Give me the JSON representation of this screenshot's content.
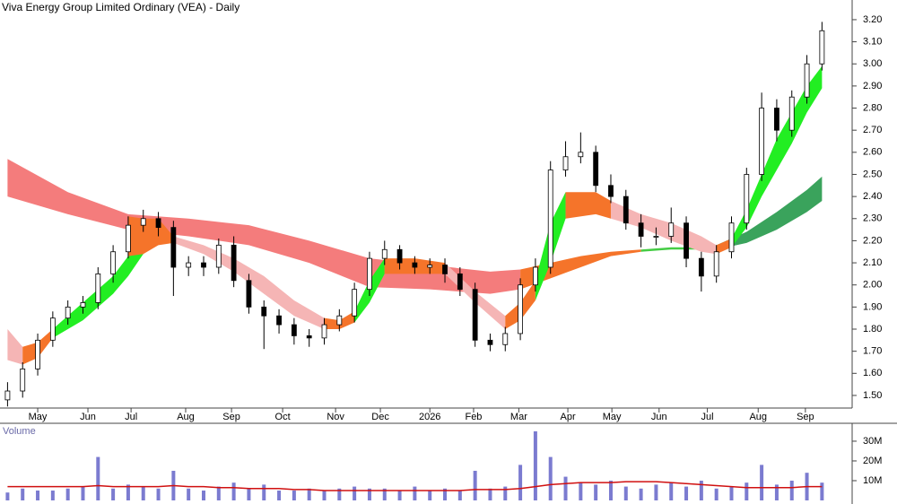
{
  "chart_data": [
    {
      "type": "candlestick",
      "title": "Viva Energy Group Limited Ordinary (VEA) - Daily",
      "xlim": [
        -0.5,
        56
      ],
      "xticks": [
        {
          "value": 2,
          "label": "May"
        },
        {
          "value": 5.33,
          "label": "Jun"
        },
        {
          "value": 8.19,
          "label": "Jul"
        },
        {
          "value": 11.81,
          "label": "Aug"
        },
        {
          "value": 14.85,
          "label": "Sep"
        },
        {
          "value": 18.24,
          "label": "Oct"
        },
        {
          "value": 21.75,
          "label": "Nov"
        },
        {
          "value": 24.72,
          "label": "Dec"
        },
        {
          "value": 28,
          "label": "2026"
        },
        {
          "value": 30.9,
          "label": "Feb"
        },
        {
          "value": 33.9,
          "label": "Mar"
        },
        {
          "value": 37.15,
          "label": "Apr"
        },
        {
          "value": 40.07,
          "label": "May"
        },
        {
          "value": 43.2,
          "label": "Jun"
        },
        {
          "value": 46.4,
          "label": "Jul"
        },
        {
          "value": 49.77,
          "label": "Aug"
        },
        {
          "value": 52.9,
          "label": "Sep"
        }
      ],
      "ylim": [
        1.443,
        3.289
      ],
      "yticks": [
        {
          "value": 1.5,
          "label": "1.50"
        },
        {
          "value": 1.6,
          "label": "1.60"
        },
        {
          "value": 1.7,
          "label": "1.70"
        },
        {
          "value": 1.8,
          "label": "1.80"
        },
        {
          "value": 1.9,
          "label": "1.90"
        },
        {
          "value": 2.0,
          "label": "2.00"
        },
        {
          "value": 2.1,
          "label": "2.10"
        },
        {
          "value": 2.2,
          "label": "2.20"
        },
        {
          "value": 2.3,
          "label": "2.30"
        },
        {
          "value": 2.4,
          "label": "2.40"
        },
        {
          "value": 2.5,
          "label": "2.50"
        },
        {
          "value": 2.6,
          "label": "2.60"
        },
        {
          "value": 2.7,
          "label": "2.70"
        },
        {
          "value": 2.8,
          "label": "2.80"
        },
        {
          "value": 2.9,
          "label": "2.90"
        },
        {
          "value": 3.0,
          "label": "3.00"
        },
        {
          "value": 3.1,
          "label": "3.10"
        },
        {
          "value": 3.2,
          "label": "3.20"
        }
      ],
      "up_color": "#ffffff",
      "down_color": "#000000",
      "open": [
        1.48,
        1.52,
        1.62,
        1.75,
        1.85,
        1.9,
        1.92,
        2.05,
        2.15,
        2.27,
        2.3,
        2.26,
        2.08,
        2.1,
        2.08,
        2.18,
        2.02,
        1.9,
        1.86,
        1.82,
        1.77,
        1.76,
        1.82,
        1.86,
        1.98,
        2.12,
        2.16,
        2.1,
        2.08,
        2.09,
        2.05,
        1.98,
        1.75,
        1.73,
        1.78,
        2.0,
        2.08,
        2.52,
        2.58,
        2.6,
        2.45,
        2.4,
        2.28,
        2.22,
        2.22,
        2.28,
        2.12,
        2.04,
        2.15,
        2.28,
        2.5,
        2.8,
        2.7,
        2.85,
        3.0
      ],
      "high": [
        1.56,
        1.65,
        1.78,
        1.88,
        1.93,
        1.95,
        2.08,
        2.18,
        2.31,
        2.34,
        2.33,
        2.29,
        2.13,
        2.13,
        2.21,
        2.22,
        2.05,
        1.93,
        1.89,
        1.85,
        1.8,
        1.85,
        1.89,
        2.01,
        2.15,
        2.2,
        2.18,
        2.13,
        2.12,
        2.12,
        2.08,
        2.01,
        1.78,
        1.81,
        2.03,
        2.12,
        2.56,
        2.65,
        2.69,
        2.63,
        2.5,
        2.43,
        2.32,
        2.26,
        2.35,
        2.31,
        2.15,
        2.18,
        2.31,
        2.53,
        2.87,
        2.84,
        2.88,
        3.04,
        3.19
      ],
      "low": [
        1.45,
        1.49,
        1.59,
        1.72,
        1.82,
        1.87,
        1.89,
        2.01,
        2.12,
        2.24,
        2.22,
        1.95,
        2.04,
        2.04,
        2.05,
        1.99,
        1.87,
        1.71,
        1.78,
        1.73,
        1.72,
        1.73,
        1.79,
        1.83,
        1.95,
        2.09,
        2.07,
        2.05,
        2.05,
        2.01,
        1.95,
        1.72,
        1.7,
        1.7,
        1.75,
        1.97,
        2.05,
        2.49,
        2.55,
        2.42,
        2.37,
        2.25,
        2.17,
        2.18,
        2.19,
        2.08,
        1.97,
        2.01,
        2.12,
        2.25,
        2.47,
        2.65,
        2.67,
        2.82,
        2.97
      ],
      "close": [
        1.52,
        1.62,
        1.75,
        1.85,
        1.9,
        1.92,
        2.05,
        2.15,
        2.27,
        2.3,
        2.26,
        2.08,
        2.1,
        2.08,
        2.18,
        2.02,
        1.9,
        1.86,
        1.82,
        1.77,
        1.76,
        1.82,
        1.86,
        1.98,
        2.12,
        2.16,
        2.1,
        2.08,
        2.09,
        2.05,
        1.98,
        1.75,
        1.73,
        1.78,
        2.0,
        2.08,
        2.52,
        2.58,
        2.6,
        2.45,
        2.4,
        2.28,
        2.22,
        2.22,
        2.28,
        2.12,
        2.04,
        2.15,
        2.28,
        2.5,
        2.8,
        2.7,
        2.85,
        3.0,
        3.15
      ],
      "ribbons": [
        {
          "color": "#f47c7c",
          "x": [
            0,
            4,
            8,
            12,
            16,
            20,
            24,
            28,
            32,
            34
          ],
          "upper": [
            2.57,
            2.42,
            2.32,
            2.3,
            2.27,
            2.2,
            2.12,
            2.09,
            2.06,
            2.07
          ],
          "lower": [
            2.4,
            2.32,
            2.25,
            2.22,
            2.18,
            2.1,
            1.99,
            1.98,
            1.96,
            1.98
          ]
        },
        {
          "color": "#f5742a",
          "x": [
            34,
            36,
            38,
            40,
            42
          ],
          "upper": [
            2.07,
            2.1,
            2.13,
            2.15,
            2.16
          ],
          "lower": [
            1.98,
            2.03,
            2.08,
            2.13,
            2.15
          ]
        },
        {
          "color": "#44cc44",
          "x": [
            42,
            44,
            46,
            47
          ],
          "upper": [
            2.16,
            2.17,
            2.17,
            2.18
          ],
          "lower": [
            2.15,
            2.16,
            2.16,
            2.16
          ]
        },
        {
          "color": "#3aa35c",
          "x": [
            47,
            49,
            51,
            53,
            54
          ],
          "upper": [
            2.18,
            2.24,
            2.33,
            2.43,
            2.49
          ],
          "lower": [
            2.16,
            2.19,
            2.25,
            2.33,
            2.38
          ]
        },
        {
          "color": "#f5b5b5",
          "x": [
            0,
            1
          ],
          "upper": [
            1.8,
            1.72
          ],
          "lower": [
            1.66,
            1.64
          ]
        },
        {
          "color": "#f5742a",
          "x": [
            1,
            2,
            3
          ],
          "upper": [
            1.72,
            1.74,
            1.8
          ],
          "lower": [
            1.64,
            1.67,
            1.76
          ]
        },
        {
          "color": "#22ee22",
          "x": [
            3,
            5,
            7,
            8,
            9
          ],
          "upper": [
            1.8,
            1.92,
            2.04,
            2.13,
            2.2
          ],
          "lower": [
            1.76,
            1.84,
            1.96,
            2.04,
            2.14
          ]
        },
        {
          "color": "#f5742a",
          "x": [
            8,
            9,
            10,
            11
          ],
          "upper": [
            2.31,
            2.3,
            2.3,
            2.22
          ],
          "lower": [
            2.13,
            2.14,
            2.18,
            2.19
          ]
        },
        {
          "color": "#f5b5b5",
          "x": [
            11,
            13,
            15,
            17,
            19,
            21
          ],
          "upper": [
            2.22,
            2.18,
            2.12,
            2.04,
            1.93,
            1.85
          ],
          "lower": [
            2.19,
            2.14,
            2.06,
            1.96,
            1.86,
            1.8
          ]
        },
        {
          "color": "#f5742a",
          "x": [
            21,
            22,
            23
          ],
          "upper": [
            1.85,
            1.84,
            1.88
          ],
          "lower": [
            1.8,
            1.8,
            1.83
          ]
        },
        {
          "color": "#22ee22",
          "x": [
            23,
            24,
            25
          ],
          "upper": [
            1.88,
            2.02,
            2.12
          ],
          "lower": [
            1.83,
            1.92,
            2.05
          ]
        },
        {
          "color": "#f5742a",
          "x": [
            25,
            27,
            29
          ],
          "upper": [
            2.12,
            2.12,
            2.1
          ],
          "lower": [
            2.05,
            2.05,
            2.05
          ]
        },
        {
          "color": "#f5b5b5",
          "x": [
            29,
            31,
            33
          ],
          "upper": [
            2.1,
            1.97,
            1.86
          ],
          "lower": [
            2.05,
            1.92,
            1.8
          ]
        },
        {
          "color": "#f5742a",
          "x": [
            33,
            34,
            35
          ],
          "upper": [
            1.86,
            1.92,
            2.02
          ],
          "lower": [
            1.8,
            1.84,
            1.93
          ]
        },
        {
          "color": "#22ee22",
          "x": [
            35,
            36,
            37
          ],
          "upper": [
            2.02,
            2.28,
            2.42
          ],
          "lower": [
            1.93,
            2.1,
            2.3
          ]
        },
        {
          "color": "#f5742a",
          "x": [
            37,
            39,
            40
          ],
          "upper": [
            2.42,
            2.42,
            2.38
          ],
          "lower": [
            2.3,
            2.32,
            2.3
          ]
        },
        {
          "color": "#f5b5b5",
          "x": [
            40,
            42,
            44,
            46,
            47
          ],
          "upper": [
            2.38,
            2.32,
            2.28,
            2.22,
            2.18
          ],
          "lower": [
            2.3,
            2.26,
            2.2,
            2.15,
            2.14
          ]
        },
        {
          "color": "#f5742a",
          "x": [
            47,
            48
          ],
          "upper": [
            2.18,
            2.21
          ],
          "lower": [
            2.14,
            2.17
          ]
        },
        {
          "color": "#22ee22",
          "x": [
            48,
            49,
            50,
            51,
            52,
            53,
            54
          ],
          "upper": [
            2.21,
            2.34,
            2.5,
            2.66,
            2.78,
            2.9,
            2.99
          ],
          "lower": [
            2.17,
            2.26,
            2.4,
            2.52,
            2.64,
            2.78,
            2.89
          ]
        }
      ]
    },
    {
      "type": "bar",
      "title": "Volume",
      "xlim": [
        -0.5,
        56
      ],
      "ylim": [
        0,
        37.7
      ],
      "yticks": [
        {
          "value": 10,
          "label": "10M"
        },
        {
          "value": 20,
          "label": "20M"
        },
        {
          "value": 30,
          "label": "30M"
        }
      ],
      "color": "#7b7bd0",
      "values": [
        4,
        6,
        5,
        5,
        6,
        7,
        22,
        6,
        8,
        7,
        6,
        15,
        6,
        5,
        7,
        9,
        6,
        8,
        5,
        5,
        6,
        5,
        6,
        7,
        6,
        6,
        5,
        7,
        5,
        6,
        5,
        15,
        6,
        7,
        18,
        35,
        22,
        12,
        9,
        8,
        10,
        7,
        6,
        8,
        9,
        7,
        10,
        6,
        7,
        9,
        18,
        8,
        10,
        14,
        9
      ],
      "line": {
        "color": "#d01010",
        "values": [
          7,
          7,
          7,
          7,
          7,
          7,
          7.5,
          7,
          7,
          7,
          7,
          7.5,
          7,
          7,
          6.5,
          6.5,
          6,
          6,
          6,
          5.5,
          5.5,
          5,
          5,
          5,
          5,
          5,
          5,
          5,
          5,
          5,
          5,
          5.5,
          5.5,
          5.5,
          6,
          7,
          8,
          8.5,
          9,
          9,
          9,
          9.5,
          9.5,
          9.5,
          9,
          8.5,
          8,
          7.5,
          7,
          6.5,
          6.5,
          6.5,
          6.5,
          7,
          7
        ]
      }
    }
  ]
}
